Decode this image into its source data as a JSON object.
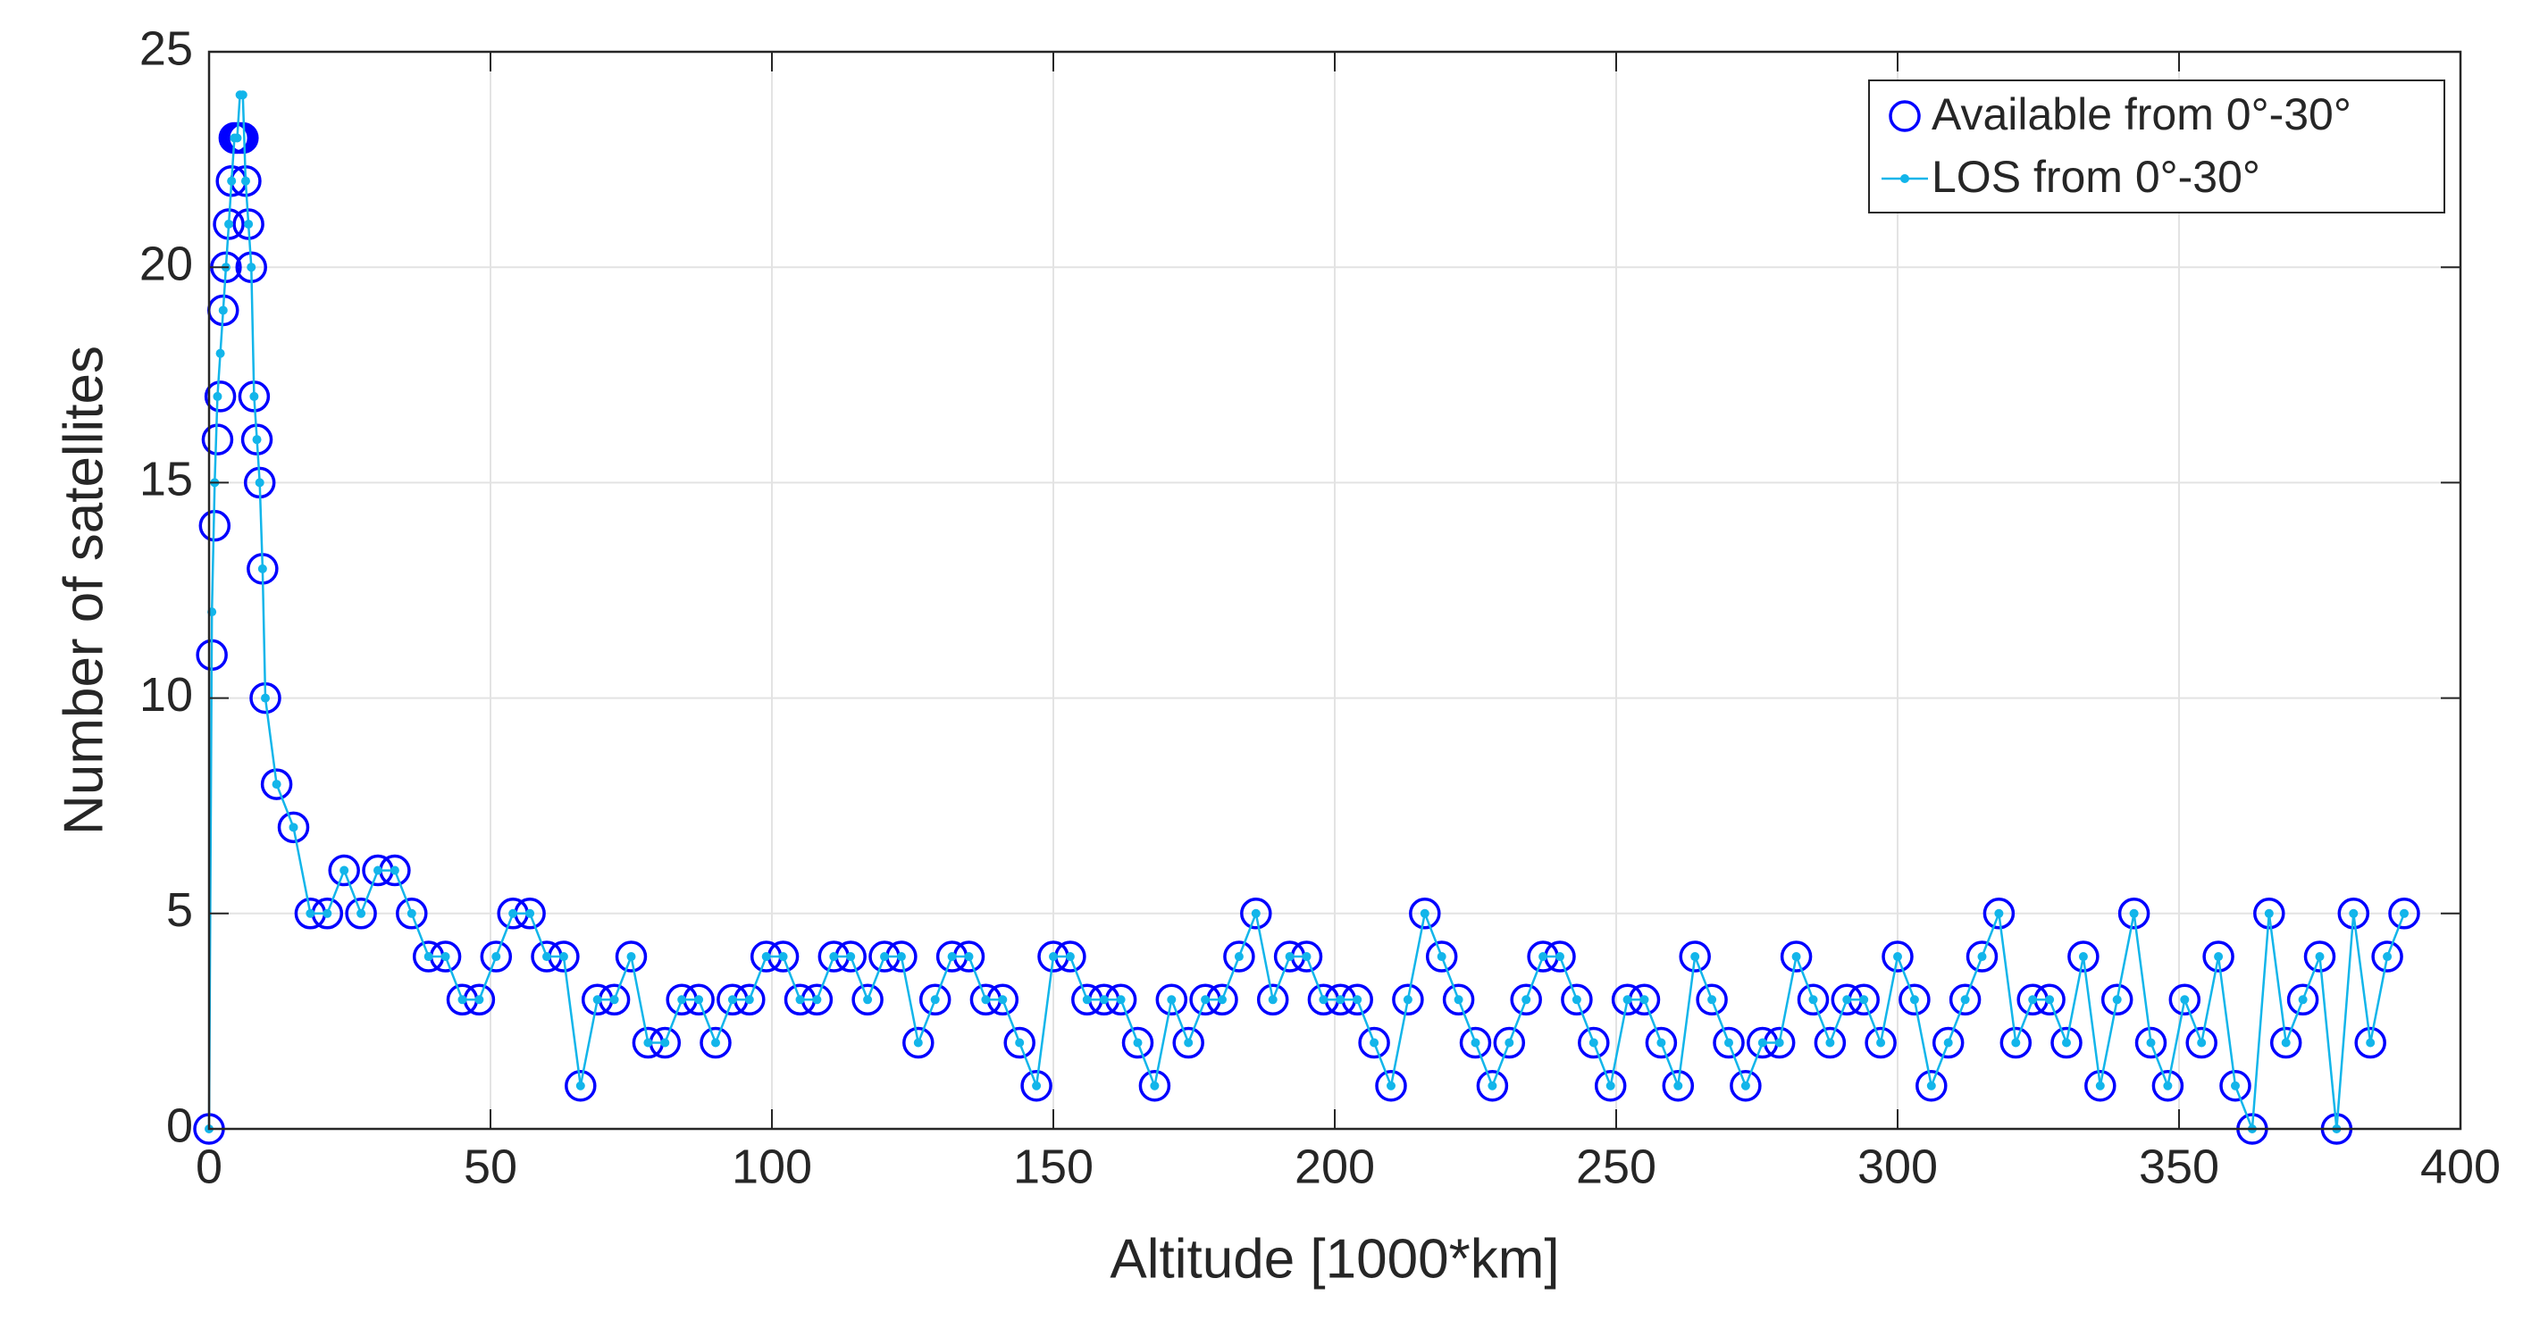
{
  "chart_data": {
    "type": "line",
    "xlabel": "Altitude [1000*km]",
    "ylabel": "Number of satellites",
    "xlim": [
      0,
      400
    ],
    "ylim": [
      0,
      25
    ],
    "xticks": [
      0,
      50,
      100,
      150,
      200,
      250,
      300,
      350,
      400
    ],
    "yticks": [
      0,
      5,
      10,
      15,
      20,
      25
    ],
    "grid": true,
    "legend": "northeast",
    "x": [
      0,
      0.5,
      1,
      1.5,
      2,
      2.5,
      3,
      3.5,
      4,
      4.5,
      5,
      5.5,
      6,
      6.5,
      7,
      7.5,
      8,
      8.5,
      9,
      9.5,
      10,
      12,
      15,
      18,
      21,
      24,
      27,
      30,
      33,
      36,
      39,
      42,
      45,
      48,
      51,
      54,
      57,
      60,
      63,
      66,
      69,
      72,
      75,
      78,
      81,
      84,
      87,
      90,
      93,
      96,
      99,
      102,
      105,
      108,
      111,
      114,
      117,
      120,
      123,
      126,
      129,
      132,
      135,
      138,
      141,
      144,
      147,
      150,
      153,
      156,
      159,
      162,
      165,
      168,
      171,
      174,
      177,
      180,
      183,
      186,
      189,
      192,
      195,
      198,
      201,
      204,
      207,
      210,
      213,
      216,
      219,
      222,
      225,
      228,
      231,
      234,
      237,
      240,
      243,
      246,
      249,
      252,
      255,
      258,
      261,
      264,
      267,
      270,
      273,
      276,
      279,
      282,
      285,
      288,
      291,
      294,
      297,
      300,
      303,
      306,
      309,
      312,
      315,
      318,
      321,
      324,
      327,
      330,
      333,
      336,
      339,
      342,
      345,
      348,
      351,
      354,
      357,
      360,
      363,
      366,
      369,
      372,
      375,
      378,
      381,
      384,
      387,
      390
    ],
    "series": [
      {
        "name": "Available from 0°-30°",
        "color": "#0000ff",
        "line": false,
        "marker": "circle",
        "values": [
          0,
          11,
          14,
          16,
          17,
          19,
          20,
          21,
          22,
          23,
          23,
          23,
          23,
          22,
          21,
          20,
          17,
          16,
          15,
          13,
          10,
          8,
          7,
          5,
          5,
          6,
          5,
          6,
          6,
          5,
          4,
          4,
          3,
          3,
          4,
          5,
          5,
          4,
          4,
          1,
          3,
          3,
          4,
          2,
          2,
          3,
          3,
          2,
          3,
          3,
          4,
          4,
          3,
          3,
          4,
          4,
          3,
          4,
          4,
          2,
          3,
          4,
          4,
          3,
          3,
          2,
          1,
          4,
          4,
          3,
          3,
          3,
          2,
          1,
          3,
          2,
          3,
          3,
          4,
          5,
          3,
          4,
          4,
          3,
          3,
          3,
          2,
          1,
          3,
          5,
          4,
          3,
          2,
          1,
          2,
          3,
          4,
          4,
          3,
          2,
          1,
          3,
          3,
          2,
          1,
          4,
          3,
          2,
          1,
          2,
          2,
          4,
          3,
          2,
          3,
          3,
          2,
          4,
          3,
          1,
          2,
          3,
          4,
          5,
          2,
          3,
          3,
          2,
          4,
          1,
          3,
          5,
          2,
          1,
          3,
          2,
          4,
          1,
          0,
          5,
          2,
          3,
          4,
          0,
          5,
          2,
          4,
          5
        ]
      },
      {
        "name": "LOS from 0°-30°",
        "color": "#12b5ea",
        "line": true,
        "marker": "dot",
        "values": [
          0,
          12,
          15,
          17,
          18,
          19,
          20,
          21,
          22,
          23,
          23,
          24,
          24,
          22,
          21,
          20,
          17,
          16,
          15,
          13,
          10,
          8,
          7,
          5,
          5,
          6,
          5,
          6,
          6,
          5,
          4,
          4,
          3,
          3,
          4,
          5,
          5,
          4,
          4,
          1,
          3,
          3,
          4,
          2,
          2,
          3,
          3,
          2,
          3,
          3,
          4,
          4,
          3,
          3,
          4,
          4,
          3,
          4,
          4,
          2,
          3,
          4,
          4,
          3,
          3,
          2,
          1,
          4,
          4,
          3,
          3,
          3,
          2,
          1,
          3,
          2,
          3,
          3,
          4,
          5,
          3,
          4,
          4,
          3,
          3,
          3,
          2,
          1,
          3,
          5,
          4,
          3,
          2,
          1,
          2,
          3,
          4,
          4,
          3,
          2,
          1,
          3,
          3,
          2,
          1,
          4,
          3,
          2,
          1,
          2,
          2,
          4,
          3,
          2,
          3,
          3,
          2,
          4,
          3,
          1,
          2,
          3,
          4,
          5,
          2,
          3,
          3,
          2,
          4,
          1,
          3,
          5,
          2,
          1,
          3,
          2,
          4,
          1,
          0,
          5,
          2,
          3,
          4,
          0,
          5,
          2,
          4,
          5
        ]
      }
    ]
  }
}
